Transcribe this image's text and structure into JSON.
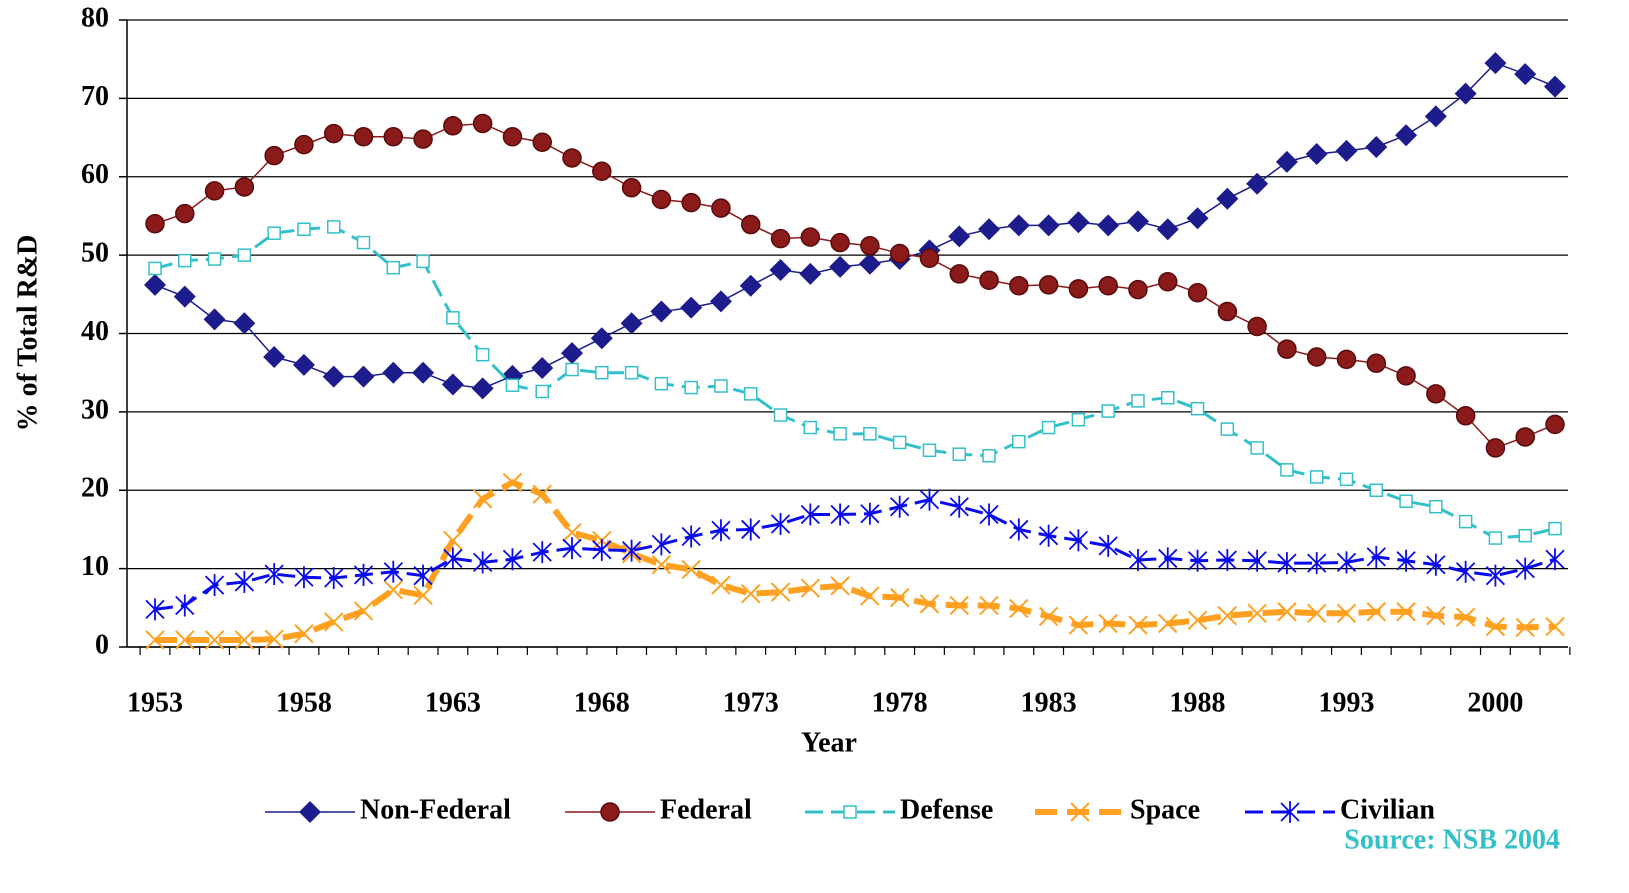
{
  "chart_data": {
    "type": "line",
    "y_label": "% of Total R&D",
    "x_label": "Year",
    "source": "Source: NSB 2004",
    "categories": [
      "1953",
      null,
      null,
      null,
      null,
      "1958",
      null,
      null,
      null,
      null,
      "1963",
      null,
      null,
      null,
      null,
      "1968",
      null,
      null,
      null,
      null,
      "1973",
      null,
      null,
      null,
      null,
      "1978",
      null,
      null,
      null,
      null,
      "1983",
      null,
      null,
      null,
      null,
      "1988",
      null,
      null,
      null,
      null,
      "1993",
      null,
      null,
      null,
      null,
      "2000",
      null,
      null
    ],
    "ylim": [
      0,
      80
    ],
    "yticks": [
      0,
      10,
      20,
      30,
      40,
      50,
      60,
      70,
      80
    ],
    "grid": true,
    "legend": "bottom",
    "series": [
      {
        "name": "Non-Federal",
        "color": "#1c1c8c",
        "marker": "diamond",
        "values": [
          46.2,
          44.7,
          41.8,
          41.3,
          37,
          36,
          34.5,
          34.5,
          35,
          35,
          33.5,
          33,
          34.6,
          35.6,
          37.5,
          39.4,
          41.3,
          42.8,
          43.3,
          44.1,
          46.1,
          48.1,
          47.6,
          48.5,
          48.9,
          49.5,
          50.6,
          52.4,
          53.3,
          53.8,
          53.8,
          54.2,
          53.8,
          54.3,
          53.3,
          54.7,
          57.2,
          59.1,
          61.9,
          62.9,
          63.3,
          63.8,
          65.3,
          67.7,
          70.6,
          74.5,
          73.1,
          71.5
        ]
      },
      {
        "name": "Federal",
        "color": "#8b1a1a",
        "marker": "circle",
        "values": [
          54,
          55.3,
          58.2,
          58.7,
          62.7,
          64.1,
          65.5,
          65.1,
          65.1,
          64.8,
          66.5,
          66.8,
          65.1,
          64.4,
          62.4,
          60.7,
          58.6,
          57.1,
          56.7,
          56,
          53.9,
          52.1,
          52.3,
          51.6,
          51.2,
          50.2,
          49.6,
          47.6,
          46.8,
          46.1,
          46.2,
          45.7,
          46.1,
          45.6,
          46.6,
          45.2,
          42.8,
          40.9,
          38,
          37,
          36.7,
          36.2,
          34.6,
          32.3,
          29.5,
          25.4,
          26.8,
          28.4
        ]
      },
      {
        "name": "Defense",
        "color": "#33c0c8",
        "marker": "square",
        "values": [
          48.3,
          49.3,
          49.5,
          50,
          52.8,
          53.3,
          53.6,
          51.6,
          48.4,
          49.2,
          42,
          37.3,
          33.4,
          32.6,
          35.4,
          35,
          35,
          33.6,
          33.1,
          33.3,
          32.3,
          29.6,
          28,
          27.2,
          27.2,
          26.1,
          25.1,
          24.6,
          24.4,
          26.2,
          28,
          29,
          30.1,
          31.4,
          31.8,
          30.4,
          27.8,
          25.4,
          22.6,
          21.7,
          21.4,
          20,
          18.6,
          17.9,
          16,
          13.9,
          14.2,
          15.1
        ]
      },
      {
        "name": "Space",
        "color": "#ffa020",
        "marker": "x",
        "values": [
          0.9,
          0.9,
          0.9,
          0.9,
          1,
          1.7,
          3.2,
          4.6,
          7.3,
          6.6,
          13.6,
          18.9,
          21,
          19.5,
          14.6,
          13.6,
          11.9,
          10.5,
          9.9,
          7.9,
          6.8,
          7,
          7.5,
          7.8,
          6.5,
          6.3,
          5.5,
          5.3,
          5.3,
          4.9,
          3.9,
          2.8,
          3,
          2.8,
          3,
          3.4,
          4,
          4.3,
          4.5,
          4.3,
          4.3,
          4.5,
          4.5,
          4,
          3.8,
          2.6,
          2.5,
          2.6
        ]
      },
      {
        "name": "Civilian",
        "color": "#0a0aee",
        "marker": "asterisk",
        "values": [
          4.8,
          5.3,
          7.9,
          8.3,
          9.3,
          8.9,
          8.8,
          9.2,
          9.6,
          9.1,
          11.3,
          10.8,
          11.2,
          12.1,
          12.6,
          12.4,
          12.3,
          13.1,
          14.1,
          14.9,
          15,
          15.7,
          16.9,
          16.9,
          17,
          17.9,
          18.8,
          17.9,
          16.9,
          15,
          14.2,
          13.6,
          12.9,
          11.1,
          11.3,
          11,
          11.1,
          11,
          10.7,
          10.7,
          10.8,
          11.5,
          11,
          10.5,
          9.6,
          9.1,
          10,
          11.2
        ]
      }
    ]
  }
}
